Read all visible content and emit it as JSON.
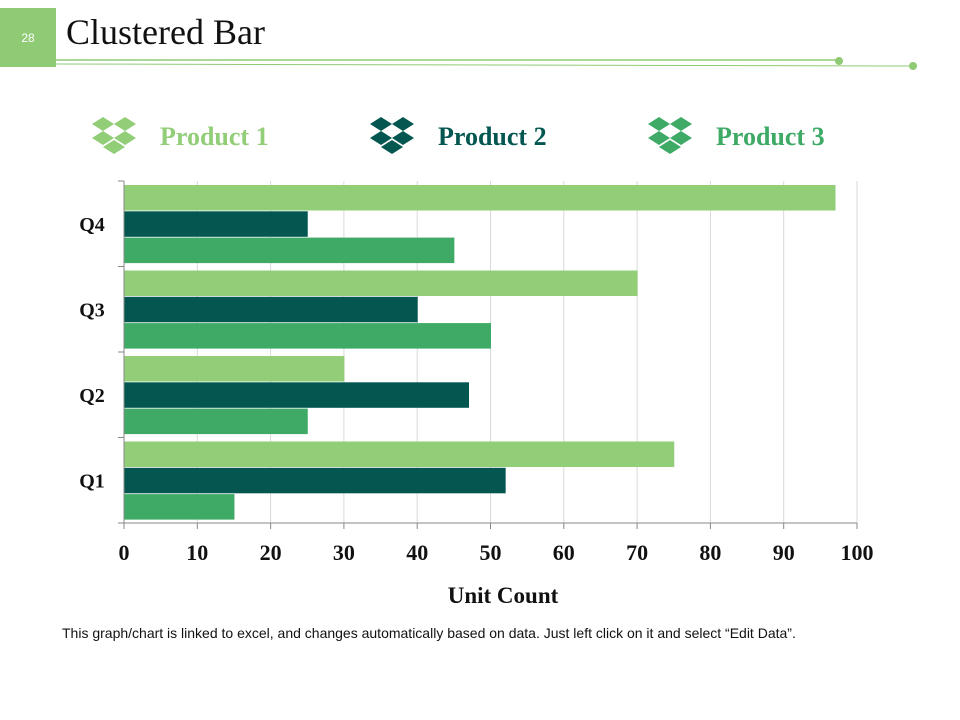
{
  "slide": {
    "number": "28",
    "title": "Clustered Bar"
  },
  "legend": [
    {
      "label": "Product 1",
      "color": "#92cd77",
      "icon": "dropbox-box-icon"
    },
    {
      "label": "Product 2",
      "color": "#045750",
      "icon": "dropbox-box-icon"
    },
    {
      "label": "Product 3",
      "color": "#3eaa66",
      "icon": "dropbox-box-icon"
    }
  ],
  "chart_data": {
    "type": "bar",
    "orientation": "horizontal",
    "title": "",
    "xlabel": "Unit Count",
    "ylabel": "",
    "categories": [
      "Q1",
      "Q2",
      "Q3",
      "Q4"
    ],
    "xlim": [
      0,
      100
    ],
    "xticks": [
      0,
      10,
      20,
      30,
      40,
      50,
      60,
      70,
      80,
      90,
      100
    ],
    "grid": true,
    "series": [
      {
        "name": "Product 1",
        "color": "#92cd77",
        "values": [
          75,
          30,
          70,
          97
        ]
      },
      {
        "name": "Product 2",
        "color": "#045750",
        "values": [
          52,
          47,
          40,
          25
        ]
      },
      {
        "name": "Product 3",
        "color": "#3eaa66",
        "values": [
          15,
          25,
          50,
          45
        ]
      }
    ]
  },
  "footer": {
    "note": "This graph/chart is linked to excel, and changes automatically based on data. Just left click on it and select “Edit Data”."
  }
}
